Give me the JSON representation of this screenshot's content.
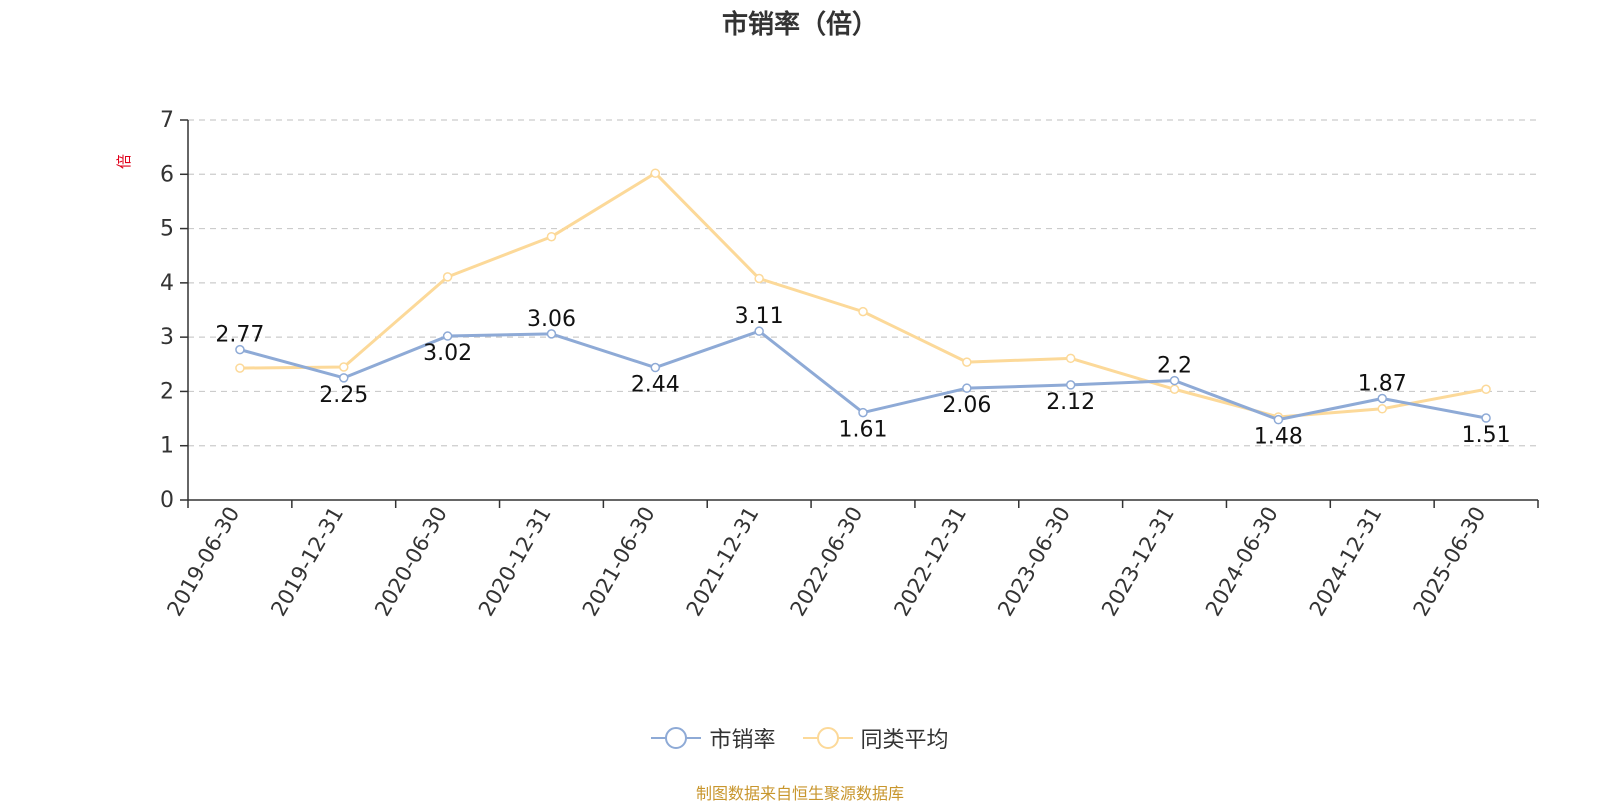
{
  "chart_data": {
    "type": "line",
    "title": "市销率（倍）",
    "unit_label": "倍",
    "categories": [
      "2019-06-30",
      "2019-12-31",
      "2020-06-30",
      "2020-12-31",
      "2021-06-30",
      "2021-12-31",
      "2022-06-30",
      "2022-12-31",
      "2023-06-30",
      "2023-12-31",
      "2024-06-30",
      "2024-12-31",
      "2025-06-30"
    ],
    "series": [
      {
        "name": "市销率",
        "color": "#8eaad6",
        "values": [
          2.77,
          2.25,
          3.02,
          3.06,
          2.44,
          3.11,
          1.61,
          2.06,
          2.12,
          2.2,
          1.48,
          1.87,
          1.51
        ],
        "data_labels": true
      },
      {
        "name": "同类平均",
        "color": "#fcd999",
        "values": [
          2.43,
          2.45,
          4.11,
          4.85,
          6.02,
          4.08,
          3.47,
          2.54,
          2.61,
          2.04,
          1.53,
          1.68,
          2.04
        ],
        "data_labels": false
      }
    ],
    "y_ticks": [
      "0",
      "1",
      "2",
      "3",
      "4",
      "5",
      "6",
      "7"
    ],
    "ylim": [
      0,
      7
    ],
    "grid": "horizontal dashed",
    "legend_position": "bottom-center",
    "source_note": "制图数据来自恒生聚源数据库"
  }
}
